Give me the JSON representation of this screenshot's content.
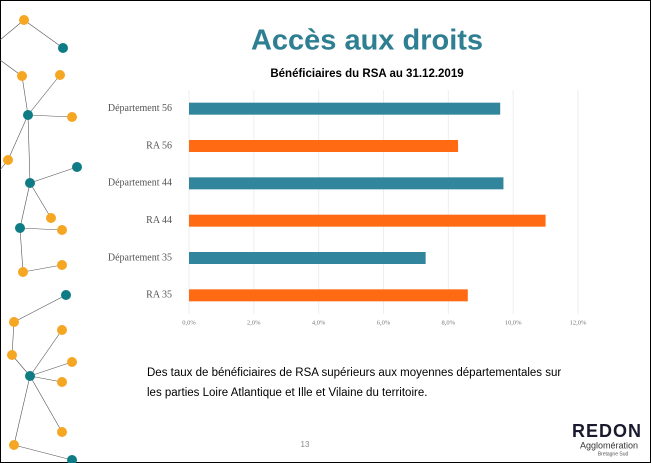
{
  "title": "Accès aux droits",
  "chart_data": {
    "type": "bar",
    "orientation": "horizontal",
    "title": "Bénéficiaires du RSA au 31.12.2019",
    "categories": [
      "Département 56",
      "RA 56",
      "Département 44",
      "RA 44",
      "Département 35",
      "RA 35"
    ],
    "values": [
      9.6,
      8.3,
      9.7,
      11.0,
      7.3,
      8.6
    ],
    "colors": [
      "#31859c",
      "#ff6a13",
      "#31859c",
      "#ff6a13",
      "#31859c",
      "#ff6a13"
    ],
    "xlim": [
      0,
      12
    ],
    "xticks": [
      {
        "value": 0,
        "label": "0,0%"
      },
      {
        "value": 2,
        "label": "2,0%"
      },
      {
        "value": 4,
        "label": "4,0%"
      },
      {
        "value": 6,
        "label": "6,0%"
      },
      {
        "value": 8,
        "label": "8,0%"
      },
      {
        "value": 10,
        "label": "10,0%"
      },
      {
        "value": 12,
        "label": "12,0%"
      }
    ],
    "grid": true
  },
  "text": [
    "Des taux de bénéficiaires de RSA supérieurs aux moyennes départementales sur",
    "les parties Loire Atlantique et Ille et Vilaine du territoire."
  ],
  "page_number": "13",
  "logo": {
    "name": "REDON",
    "subtitle": "Agglomération",
    "tagline": "Bretagne Sud"
  }
}
